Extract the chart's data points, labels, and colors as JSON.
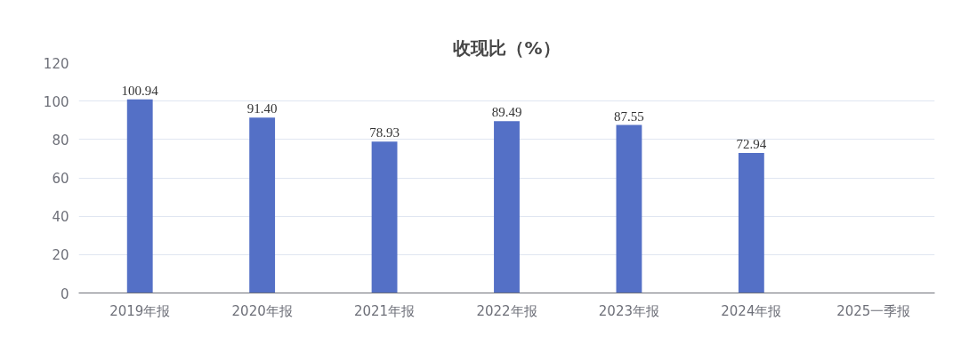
{
  "chart_data": {
    "type": "bar",
    "title": "收现比（%）",
    "categories": [
      "2019年报",
      "2020年报",
      "2021年报",
      "2022年报",
      "2023年报",
      "2024年报",
      "2025一季报"
    ],
    "values": [
      100.94,
      91.4,
      78.93,
      89.49,
      87.55,
      72.94,
      null
    ],
    "value_labels": [
      "100.94",
      "91.40",
      "78.93",
      "89.49",
      "87.55",
      "72.94",
      null
    ],
    "color": "#5470c6",
    "ylim": [
      0,
      120
    ],
    "yticks": [
      0,
      20,
      40,
      60,
      80,
      100,
      120
    ],
    "grid": "y"
  }
}
